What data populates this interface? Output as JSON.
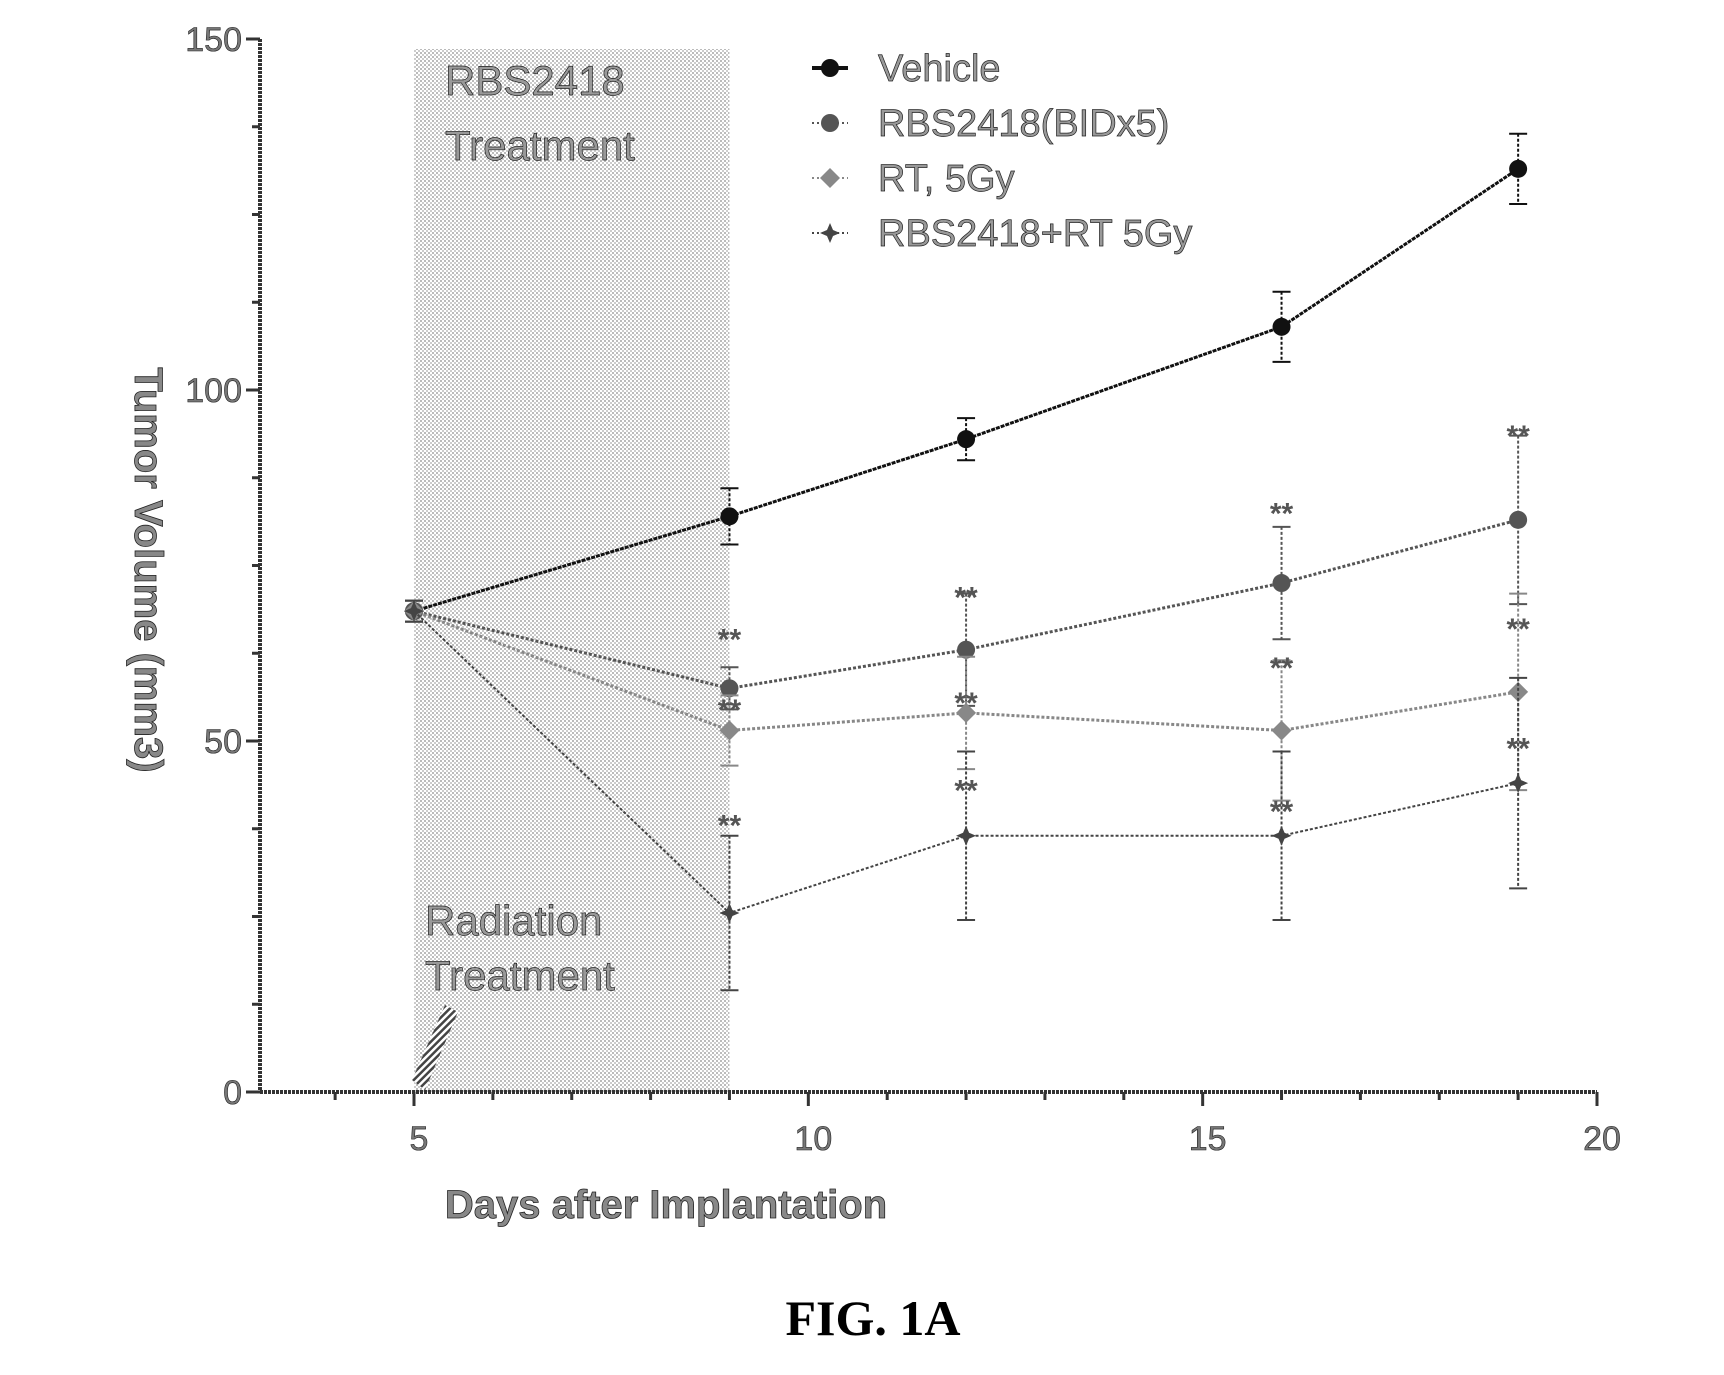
{
  "chart_data": {
    "type": "line",
    "title": "",
    "xlabel": "Days after Implantation",
    "ylabel": "Tumor Volume (mm3)",
    "xlim": [
      3,
      20
    ],
    "ylim": [
      0,
      150
    ],
    "xticks": [
      5,
      10,
      15,
      20
    ],
    "yticks": [
      0,
      50,
      100,
      150
    ],
    "grid": false,
    "legend_position": "top-right",
    "x": [
      5,
      9,
      12,
      16,
      19
    ],
    "series": [
      {
        "name": "Vehicle",
        "values": [
          68.5,
          82,
          93,
          109,
          131.5
        ],
        "errors": [
          1.5,
          4,
          3,
          5,
          5
        ],
        "color": "#111111",
        "marker": "circle"
      },
      {
        "name": "RBS2418(BIDx5)",
        "values": [
          68.5,
          57.5,
          63,
          72.5,
          81.5
        ],
        "errors": [
          1.5,
          3,
          8,
          8,
          12
        ],
        "color": "#555555",
        "marker": "circle"
      },
      {
        "name": "RT, 5Gy",
        "values": [
          68.5,
          51.5,
          54,
          51.5,
          57
        ],
        "errors": [
          1.5,
          5,
          8,
          10,
          14
        ],
        "color": "#888888",
        "marker": "diamond"
      },
      {
        "name": "RBS2418+RT 5Gy",
        "values": [
          68.5,
          25.5,
          36.5,
          36.5,
          44
        ],
        "errors": [
          1.5,
          11,
          12,
          12,
          15
        ],
        "color": "#444444",
        "marker": "star"
      }
    ],
    "significance_marks": [
      {
        "text": "**",
        "x": 9,
        "y": 65
      },
      {
        "text": "**",
        "x": 9,
        "y": 55
      },
      {
        "text": "**",
        "x": 9,
        "y": 38.5
      },
      {
        "text": "**",
        "x": 12,
        "y": 71
      },
      {
        "text": "**",
        "x": 12,
        "y": 56
      },
      {
        "text": "**",
        "x": 12,
        "y": 43.5
      },
      {
        "text": "**",
        "x": 16,
        "y": 83
      },
      {
        "text": "**",
        "x": 16,
        "y": 61
      },
      {
        "text": "**",
        "x": 16,
        "y": 40.5
      },
      {
        "text": "**",
        "x": 19,
        "y": 94
      },
      {
        "text": "**",
        "x": 19,
        "y": 66.5
      },
      {
        "text": "**",
        "x": 19,
        "y": 49.5
      }
    ],
    "shaded_region": {
      "x_from": 5,
      "x_to": 9
    },
    "annotations": {
      "treatment_line1": "RBS2418",
      "treatment_line2": "Treatment",
      "radiation_line1": "Radiation",
      "radiation_line2": "Treatment"
    }
  },
  "figure_label": "FIG. 1A"
}
